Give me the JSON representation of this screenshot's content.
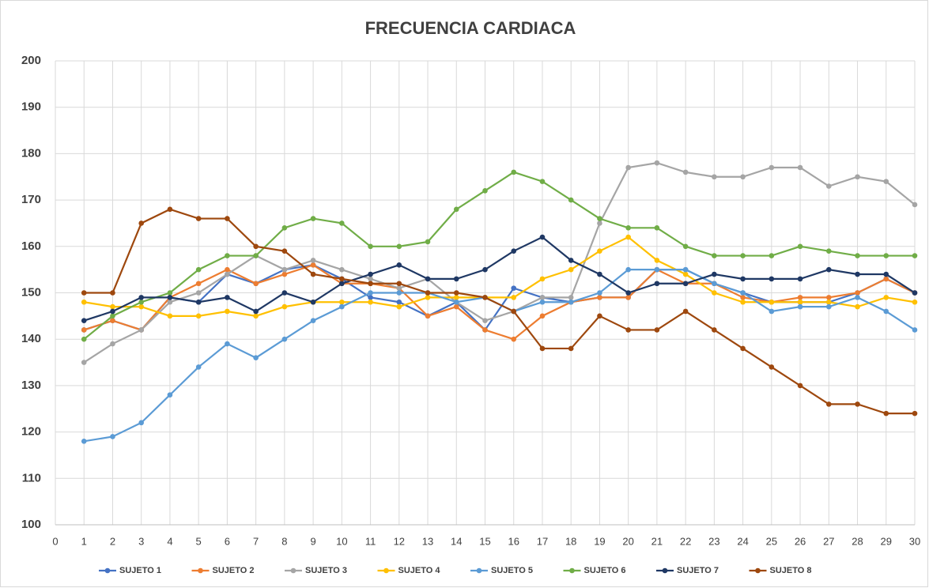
{
  "chart_data": {
    "type": "line",
    "title": "FRECUENCIA CARDIACA",
    "x": [
      1,
      2,
      3,
      4,
      5,
      6,
      7,
      8,
      9,
      10,
      11,
      12,
      13,
      14,
      15,
      16,
      17,
      18,
      19,
      20,
      21,
      22,
      23,
      24,
      25,
      26,
      27,
      28,
      29,
      30
    ],
    "xlim": [
      0,
      30
    ],
    "xticks": [
      0,
      1,
      2,
      3,
      4,
      5,
      6,
      7,
      8,
      9,
      10,
      11,
      12,
      13,
      14,
      15,
      16,
      17,
      18,
      19,
      20,
      21,
      22,
      23,
      24,
      25,
      26,
      27,
      28,
      29,
      30
    ],
    "ylim": [
      100,
      200
    ],
    "yticks": [
      100,
      110,
      120,
      130,
      140,
      150,
      160,
      170,
      180,
      190,
      200
    ],
    "grid": true,
    "legend": "bottom",
    "series": [
      {
        "name": "SUJETO 1",
        "color": "#4472c4",
        "values": [
          142,
          144,
          142,
          149,
          148,
          154,
          152,
          155,
          156,
          153,
          149,
          148,
          145,
          148,
          142,
          151,
          149,
          148,
          149,
          149,
          155,
          155,
          152,
          150,
          148,
          148,
          148,
          150,
          153,
          150
        ]
      },
      {
        "name": "SUJETO 2",
        "color": "#ed7d31",
        "values": [
          142,
          144,
          142,
          149,
          152,
          155,
          152,
          154,
          156,
          152,
          152,
          151,
          145,
          147,
          142,
          140,
          145,
          148,
          149,
          149,
          155,
          152,
          152,
          149,
          148,
          149,
          149,
          150,
          153,
          150
        ]
      },
      {
        "name": "SUJETO 3",
        "color": "#a5a5a5",
        "values": [
          135,
          139,
          142,
          148,
          150,
          154,
          158,
          155,
          157,
          155,
          153,
          151,
          153,
          148,
          144,
          146,
          149,
          149,
          165,
          177,
          178,
          176,
          175,
          175,
          177,
          177,
          173,
          175,
          174,
          169
        ]
      },
      {
        "name": "SUJETO 4",
        "color": "#ffc000",
        "values": [
          148,
          147,
          147,
          145,
          145,
          146,
          145,
          147,
          148,
          148,
          148,
          147,
          149,
          149,
          149,
          149,
          153,
          155,
          159,
          162,
          157,
          154,
          150,
          148,
          148,
          148,
          148,
          147,
          149,
          148
        ]
      },
      {
        "name": "SUJETO 5",
        "color": "#5b9bd5",
        "values": [
          118,
          119,
          122,
          128,
          134,
          139,
          136,
          140,
          144,
          147,
          150,
          150,
          150,
          148,
          149,
          146,
          148,
          148,
          150,
          155,
          155,
          155,
          152,
          150,
          146,
          147,
          147,
          149,
          146,
          142
        ]
      },
      {
        "name": "SUJETO 6",
        "color": "#70ad47",
        "values": [
          140,
          145,
          148,
          150,
          155,
          158,
          158,
          164,
          166,
          165,
          160,
          160,
          161,
          168,
          172,
          176,
          174,
          170,
          166,
          164,
          164,
          160,
          158,
          158,
          158,
          160,
          159,
          158,
          158,
          158
        ]
      },
      {
        "name": "SUJETO 7",
        "color": "#1f3864",
        "values": [
          144,
          146,
          149,
          149,
          148,
          149,
          146,
          150,
          148,
          152,
          154,
          156,
          153,
          153,
          155,
          159,
          162,
          157,
          154,
          150,
          152,
          152,
          154,
          153,
          153,
          153,
          155,
          154,
          154,
          150
        ]
      },
      {
        "name": "SUJETO 8",
        "color": "#9e480e",
        "values": [
          150,
          150,
          165,
          168,
          166,
          166,
          160,
          159,
          154,
          153,
          152,
          152,
          150,
          150,
          149,
          146,
          138,
          138,
          145,
          142,
          142,
          146,
          142,
          138,
          134,
          130,
          126,
          126,
          124,
          124
        ]
      }
    ]
  }
}
